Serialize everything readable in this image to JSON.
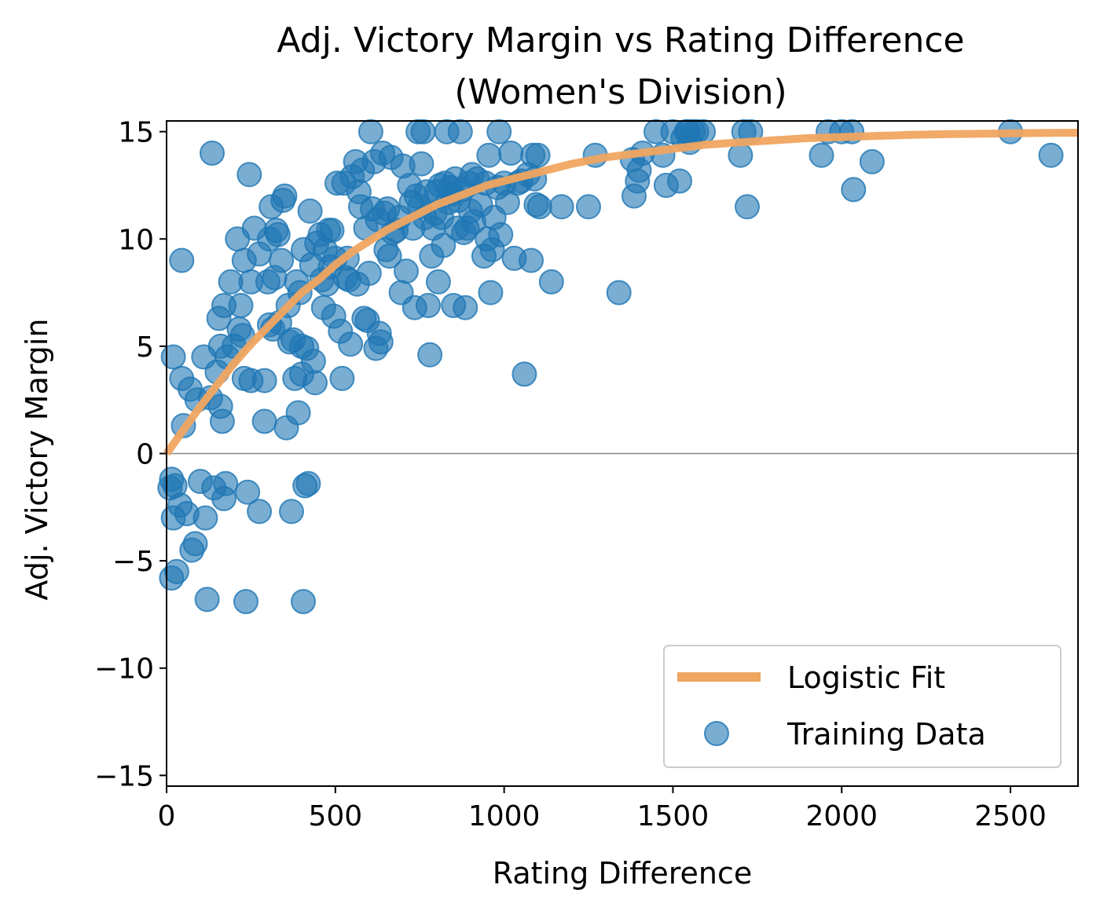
{
  "chart_data": {
    "type": "scatter",
    "title": "Adj. Victory Margin vs Rating Difference",
    "subtitle": "(Women's Division)",
    "xlabel": "Rating Difference",
    "ylabel": "Adj. Victory Margin",
    "xlim": [
      0,
      2700
    ],
    "ylim": [
      -15.5,
      15.5
    ],
    "xticks": [
      0,
      500,
      1000,
      1500,
      2000,
      2500
    ],
    "yticks": [
      -15,
      -10,
      -5,
      0,
      5,
      10,
      15
    ],
    "xtick_labels": [
      "0",
      "500",
      "1000",
      "1500",
      "2000",
      "2500"
    ],
    "ytick_labels": [
      "−15",
      "−10",
      "−5",
      "0",
      "5",
      "10",
      "15"
    ],
    "grid": false,
    "zero_line": true,
    "legend_position": "lower-right",
    "colors": {
      "scatter": "#1f77b4",
      "fit": "#f0a560",
      "zero_line": "#888888"
    },
    "series": [
      {
        "name": "Logistic Fit",
        "kind": "line",
        "x": [
          0,
          50,
          100,
          150,
          200,
          250,
          300,
          350,
          400,
          450,
          500,
          550,
          600,
          650,
          700,
          750,
          800,
          850,
          900,
          950,
          1000,
          1100,
          1200,
          1300,
          1400,
          1500,
          1600,
          1700,
          1800,
          1900,
          2000,
          2100,
          2200,
          2300,
          2400,
          2500,
          2600,
          2700
        ],
        "y": [
          0,
          1.1,
          2.2,
          3.2,
          4.2,
          5.1,
          5.9,
          6.7,
          7.5,
          8.1,
          8.8,
          9.4,
          9.9,
          10.4,
          10.8,
          11.2,
          11.6,
          11.9,
          12.2,
          12.5,
          12.7,
          13.1,
          13.5,
          13.8,
          14.0,
          14.2,
          14.4,
          14.5,
          14.6,
          14.7,
          14.75,
          14.8,
          14.85,
          14.88,
          14.9,
          14.92,
          14.94,
          14.95
        ]
      },
      {
        "name": "Training Data",
        "kind": "scatter",
        "points": [
          [
            10,
            -1.6
          ],
          [
            15,
            -1.2
          ],
          [
            15,
            -5.8
          ],
          [
            20,
            4.5
          ],
          [
            20,
            -3
          ],
          [
            25,
            -1.5
          ],
          [
            30,
            -5.5
          ],
          [
            40,
            -2.4
          ],
          [
            45,
            9
          ],
          [
            45,
            3.5
          ],
          [
            50,
            1.3
          ],
          [
            60,
            -2.8
          ],
          [
            70,
            3
          ],
          [
            75,
            -4.5
          ],
          [
            85,
            -4.2
          ],
          [
            90,
            2.5
          ],
          [
            100,
            -1.3
          ],
          [
            110,
            4.5
          ],
          [
            115,
            -3
          ],
          [
            120,
            -6.8
          ],
          [
            130,
            2.6
          ],
          [
            135,
            14
          ],
          [
            140,
            -1.6
          ],
          [
            150,
            3.8
          ],
          [
            155,
            6.3
          ],
          [
            160,
            2.2
          ],
          [
            160,
            5
          ],
          [
            165,
            1.5
          ],
          [
            170,
            6.9
          ],
          [
            170,
            -2.1
          ],
          [
            175,
            -1.4
          ],
          [
            180,
            4.5
          ],
          [
            190,
            8
          ],
          [
            200,
            5
          ],
          [
            210,
            10
          ],
          [
            215,
            5.8
          ],
          [
            220,
            6.9
          ],
          [
            225,
            5.5
          ],
          [
            230,
            9
          ],
          [
            230,
            3.5
          ],
          [
            235,
            -6.9
          ],
          [
            240,
            -1.8
          ],
          [
            245,
            13
          ],
          [
            250,
            3.4
          ],
          [
            250,
            8
          ],
          [
            260,
            10.5
          ],
          [
            275,
            -2.7
          ],
          [
            275,
            9.3
          ],
          [
            290,
            3.4
          ],
          [
            290,
            1.5
          ],
          [
            300,
            8
          ],
          [
            305,
            10
          ],
          [
            305,
            6
          ],
          [
            310,
            11.5
          ],
          [
            315,
            5.8
          ],
          [
            320,
            8.2
          ],
          [
            325,
            10.4
          ],
          [
            330,
            10.2
          ],
          [
            335,
            6.1
          ],
          [
            340,
            9
          ],
          [
            345,
            11.8
          ],
          [
            350,
            12
          ],
          [
            355,
            1.2
          ],
          [
            360,
            6.9
          ],
          [
            365,
            5.2
          ],
          [
            370,
            -2.7
          ],
          [
            375,
            5.3
          ],
          [
            380,
            3.5
          ],
          [
            385,
            8
          ],
          [
            390,
            1.9
          ],
          [
            395,
            7.5
          ],
          [
            400,
            3.7
          ],
          [
            400,
            5
          ],
          [
            405,
            9.5
          ],
          [
            405,
            -6.9
          ],
          [
            410,
            -1.5
          ],
          [
            415,
            4.9
          ],
          [
            420,
            -1.4
          ],
          [
            425,
            11.3
          ],
          [
            430,
            8.8
          ],
          [
            435,
            4.3
          ],
          [
            440,
            3.3
          ],
          [
            445,
            9.8
          ],
          [
            455,
            10.2
          ],
          [
            460,
            8.1
          ],
          [
            465,
            6.8
          ],
          [
            470,
            9.5
          ],
          [
            475,
            7.9
          ],
          [
            480,
            10.4
          ],
          [
            485,
            8.7
          ],
          [
            490,
            10.4
          ],
          [
            495,
            6.4
          ],
          [
            500,
            9.1
          ],
          [
            505,
            12.6
          ],
          [
            515,
            5.7
          ],
          [
            520,
            3.5
          ],
          [
            525,
            12.6
          ],
          [
            530,
            8.2
          ],
          [
            535,
            9.1
          ],
          [
            540,
            8.1
          ],
          [
            545,
            5.1
          ],
          [
            550,
            12.9
          ],
          [
            560,
            13.6
          ],
          [
            565,
            7.9
          ],
          [
            570,
            12.2
          ],
          [
            575,
            11.5
          ],
          [
            580,
            13.2
          ],
          [
            585,
            6.3
          ],
          [
            590,
            10.5
          ],
          [
            595,
            6.2
          ],
          [
            600,
            8.4
          ],
          [
            605,
            15
          ],
          [
            610,
            11.4
          ],
          [
            615,
            13.6
          ],
          [
            620,
            4.9
          ],
          [
            625,
            10.9
          ],
          [
            630,
            5.6
          ],
          [
            635,
            5.2
          ],
          [
            640,
            14
          ],
          [
            645,
            11.2
          ],
          [
            650,
            9.5
          ],
          [
            655,
            11.4
          ],
          [
            660,
            9.2
          ],
          [
            665,
            13.8
          ],
          [
            670,
            10.3
          ],
          [
            680,
            10.4
          ],
          [
            690,
            11
          ],
          [
            695,
            7.5
          ],
          [
            700,
            13.4
          ],
          [
            710,
            8.5
          ],
          [
            720,
            12.5
          ],
          [
            725,
            11.7
          ],
          [
            730,
            10.5
          ],
          [
            735,
            6.8
          ],
          [
            740,
            12
          ],
          [
            745,
            15
          ],
          [
            750,
            11.5
          ],
          [
            755,
            13.5
          ],
          [
            760,
            15
          ],
          [
            765,
            11
          ],
          [
            770,
            12.2
          ],
          [
            775,
            6.9
          ],
          [
            780,
            4.6
          ],
          [
            785,
            9.2
          ],
          [
            790,
            10.5
          ],
          [
            795,
            11.2
          ],
          [
            800,
            12.2
          ],
          [
            805,
            8
          ],
          [
            810,
            12.5
          ],
          [
            815,
            11
          ],
          [
            820,
            9.7
          ],
          [
            825,
            12.6
          ],
          [
            830,
            15
          ],
          [
            835,
            11.7
          ],
          [
            840,
            12.4
          ],
          [
            845,
            12.1
          ],
          [
            850,
            6.9
          ],
          [
            855,
            12.8
          ],
          [
            860,
            10.5
          ],
          [
            865,
            11.8
          ],
          [
            870,
            15
          ],
          [
            875,
            12.3
          ],
          [
            880,
            10.3
          ],
          [
            885,
            6.8
          ],
          [
            890,
            10.5
          ],
          [
            895,
            12.6
          ],
          [
            900,
            11.3
          ],
          [
            905,
            13
          ],
          [
            910,
            10.8
          ],
          [
            920,
            12.8
          ],
          [
            930,
            11.6
          ],
          [
            940,
            9.2
          ],
          [
            945,
            12.6
          ],
          [
            950,
            10
          ],
          [
            955,
            13.9
          ],
          [
            960,
            7.5
          ],
          [
            965,
            9.5
          ],
          [
            970,
            11
          ],
          [
            980,
            12.4
          ],
          [
            985,
            15
          ],
          [
            990,
            10.2
          ],
          [
            1000,
            12.6
          ],
          [
            1010,
            11.7
          ],
          [
            1020,
            14
          ],
          [
            1030,
            9.1
          ],
          [
            1040,
            12.6
          ],
          [
            1050,
            12.7
          ],
          [
            1060,
            3.7
          ],
          [
            1070,
            13
          ],
          [
            1080,
            9
          ],
          [
            1085,
            13.9
          ],
          [
            1090,
            12.8
          ],
          [
            1095,
            11.6
          ],
          [
            1100,
            13.9
          ],
          [
            1105,
            11.5
          ],
          [
            1140,
            8
          ],
          [
            1170,
            11.5
          ],
          [
            1250,
            11.5
          ],
          [
            1270,
            13.9
          ],
          [
            1340,
            7.5
          ],
          [
            1380,
            13.7
          ],
          [
            1385,
            12
          ],
          [
            1395,
            12.7
          ],
          [
            1400,
            13.2
          ],
          [
            1410,
            14
          ],
          [
            1450,
            15
          ],
          [
            1470,
            13.9
          ],
          [
            1480,
            12.5
          ],
          [
            1500,
            15
          ],
          [
            1520,
            12.7
          ],
          [
            1530,
            14.7
          ],
          [
            1540,
            15
          ],
          [
            1545,
            15
          ],
          [
            1550,
            14.5
          ],
          [
            1560,
            15
          ],
          [
            1570,
            15
          ],
          [
            1590,
            15
          ],
          [
            1700,
            13.9
          ],
          [
            1710,
            15
          ],
          [
            1720,
            11.5
          ],
          [
            1730,
            15
          ],
          [
            1940,
            13.9
          ],
          [
            1960,
            15
          ],
          [
            2000,
            15
          ],
          [
            2030,
            15
          ],
          [
            2035,
            12.3
          ],
          [
            2090,
            13.6
          ],
          [
            2500,
            15
          ],
          [
            2620,
            13.9
          ]
        ]
      }
    ]
  }
}
